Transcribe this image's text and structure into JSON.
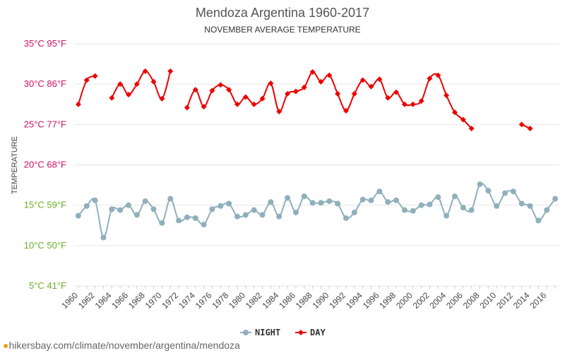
{
  "chart_data": {
    "type": "line",
    "title": "Mendoza Argentina 1960-2017",
    "subtitle": "NOVEMBER AVERAGE TEMPERATURE",
    "ylabel": "TEMPERATURE",
    "ylim": [
      5,
      35
    ],
    "yticks": [
      {
        "value": 35,
        "label": "35°C 95°F",
        "color": "#d01060"
      },
      {
        "value": 30,
        "label": "30°C 86°F",
        "color": "#d01060"
      },
      {
        "value": 25,
        "label": "25°C 77°F",
        "color": "#d01060"
      },
      {
        "value": 20,
        "label": "20°C 68°F",
        "color": "#d01060"
      },
      {
        "value": 15,
        "label": "15°C 59°F",
        "color": "#6ab023"
      },
      {
        "value": 10,
        "label": "10°C 50°F",
        "color": "#6ab023"
      },
      {
        "value": 5,
        "label": "5°C 41°F",
        "color": "#6ab023"
      }
    ],
    "xlim": [
      1959.5,
      2017.5
    ],
    "xtick_labels": [
      "1960",
      "1962",
      "1964",
      "1966",
      "1968",
      "1970",
      "1972",
      "1974",
      "1976",
      "1978",
      "1980",
      "1982",
      "1984",
      "1986",
      "1988",
      "1990",
      "1992",
      "1994",
      "1996",
      "1998",
      "2000",
      "2002",
      "2004",
      "2006",
      "2008",
      "2010",
      "2012",
      "2014",
      "2016"
    ],
    "grid": true,
    "legend_position": "bottom-center",
    "x": [
      1960,
      1961,
      1962,
      1963,
      1964,
      1965,
      1966,
      1967,
      1968,
      1969,
      1970,
      1971,
      1972,
      1973,
      1974,
      1975,
      1976,
      1977,
      1978,
      1979,
      1980,
      1981,
      1982,
      1983,
      1984,
      1985,
      1986,
      1987,
      1988,
      1989,
      1990,
      1991,
      1992,
      1993,
      1994,
      1995,
      1996,
      1997,
      1998,
      1999,
      2000,
      2001,
      2002,
      2003,
      2004,
      2005,
      2006,
      2007,
      2008,
      2009,
      2010,
      2011,
      2012,
      2013,
      2014,
      2015,
      2016,
      2017
    ],
    "series": [
      {
        "name": "NIGHT",
        "color": "#8fb0bb",
        "marker": "circle",
        "values": [
          13.7,
          14.9,
          15.6,
          11.0,
          14.5,
          14.4,
          15.0,
          13.8,
          15.5,
          14.5,
          12.8,
          15.8,
          13.1,
          13.5,
          13.4,
          12.6,
          14.5,
          14.9,
          15.2,
          13.6,
          13.8,
          14.4,
          13.8,
          15.4,
          13.6,
          15.9,
          14.1,
          16.1,
          15.3,
          15.3,
          15.5,
          15.2,
          13.4,
          14.1,
          15.7,
          15.6,
          16.7,
          15.4,
          15.6,
          14.4,
          14.3,
          15.0,
          15.1,
          16.0,
          13.7,
          16.1,
          14.7,
          14.4,
          17.6,
          16.8,
          14.9,
          16.5,
          16.7,
          15.2,
          14.9,
          13.1,
          14.4,
          15.8
        ]
      },
      {
        "name": "DAY",
        "color": "#ee0000",
        "marker": "diamond",
        "values": [
          27.5,
          30.5,
          31.0,
          null,
          28.3,
          30.0,
          28.7,
          30.0,
          31.6,
          30.3,
          28.2,
          31.6,
          null,
          27.1,
          29.3,
          27.2,
          29.2,
          29.9,
          29.3,
          27.5,
          28.4,
          27.5,
          28.2,
          30.1,
          26.6,
          28.8,
          29.1,
          29.6,
          31.5,
          30.3,
          31.1,
          28.8,
          26.7,
          28.8,
          30.5,
          29.7,
          30.6,
          28.3,
          29.0,
          27.5,
          27.5,
          27.9,
          30.7,
          31.1,
          28.6,
          26.5,
          25.6,
          24.5,
          null,
          null,
          null,
          null,
          null,
          25.0,
          24.5,
          null,
          null,
          null
        ]
      }
    ]
  },
  "footer": {
    "pin_icon": "map-pin-icon",
    "url": "hikersbay.com/climate/november/argentina/mendoza"
  }
}
